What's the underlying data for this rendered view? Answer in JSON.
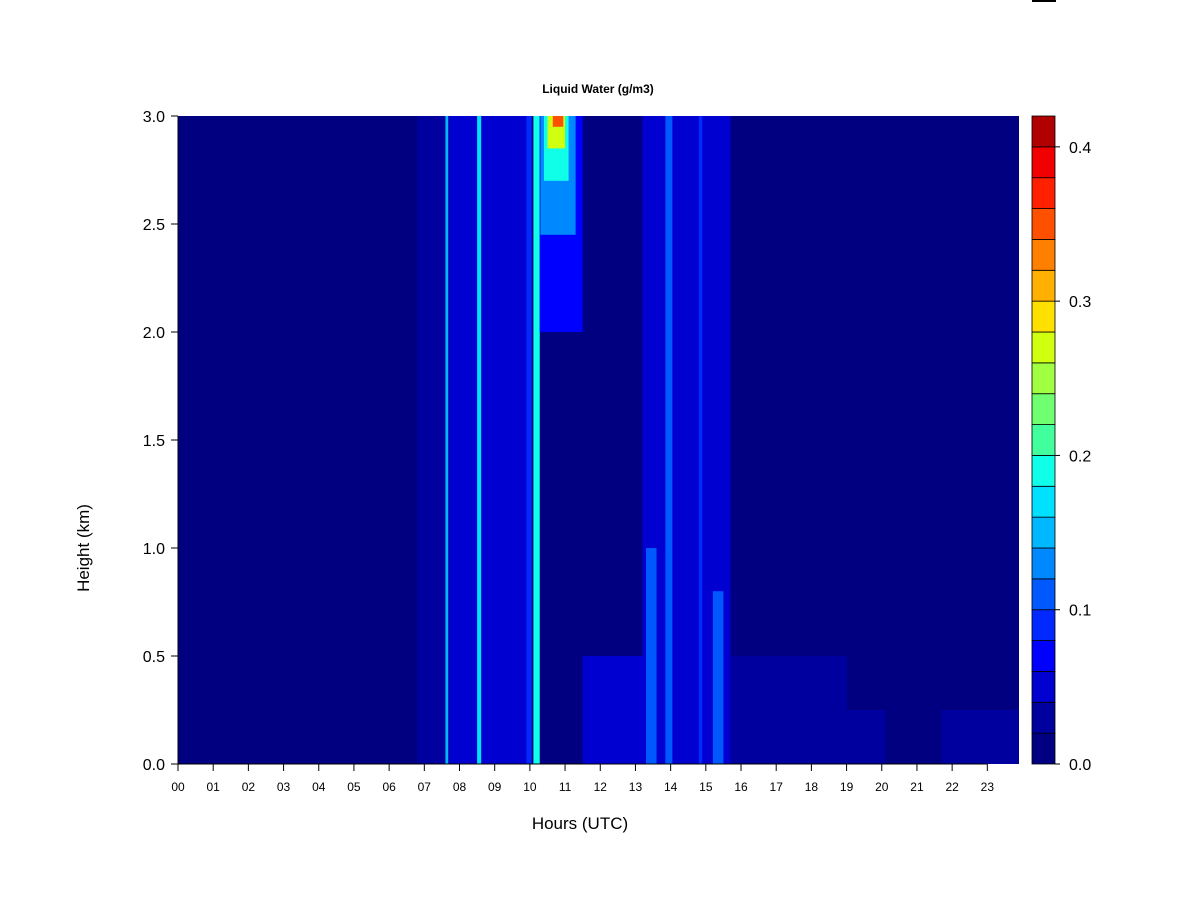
{
  "chart_data": {
    "type": "heatmap",
    "title": "Liquid Water (g/m3)",
    "xlabel": "Hours (UTC)",
    "ylabel": "Height (km)",
    "xlim": [
      0,
      23.9
    ],
    "ylim": [
      0.0,
      3.0
    ],
    "x_ticks": [
      "00",
      "01",
      "02",
      "03",
      "04",
      "05",
      "06",
      "07",
      "08",
      "09",
      "10",
      "11",
      "12",
      "13",
      "14",
      "15",
      "16",
      "17",
      "18",
      "19",
      "20",
      "21",
      "22",
      "23"
    ],
    "y_ticks": [
      "0.0",
      "0.5",
      "1.0",
      "1.5",
      "2.0",
      "2.5",
      "3.0"
    ],
    "colorbar": {
      "min": 0.0,
      "max": 0.42,
      "step": 0.02,
      "ticks": [
        "0.0",
        "0.1",
        "0.2",
        "0.3",
        "0.4"
      ],
      "colors": [
        "#000080",
        "#00009f",
        "#0000d0",
        "#0000ff",
        "#0028ff",
        "#0058ff",
        "#0088ff",
        "#00b8ff",
        "#00e0ff",
        "#10ffe8",
        "#40ff9c",
        "#70ff70",
        "#a0ff40",
        "#d0ff10",
        "#ffe000",
        "#ffb000",
        "#ff8000",
        "#ff5000",
        "#ff2000",
        "#f00000",
        "#b00000"
      ]
    },
    "background_value": 0.0,
    "features": [
      {
        "x_start": 6.8,
        "x_end": 7.6,
        "y_start": 0.0,
        "y_end": 3.0,
        "value": 0.03
      },
      {
        "x_start": 7.6,
        "x_end": 7.68,
        "y_start": 0.0,
        "y_end": 3.0,
        "value": 0.15
      },
      {
        "x_start": 7.7,
        "x_end": 8.5,
        "y_start": 0.0,
        "y_end": 3.0,
        "value": 0.05
      },
      {
        "x_start": 8.5,
        "x_end": 8.62,
        "y_start": 0.0,
        "y_end": 3.0,
        "value": 0.17
      },
      {
        "x_start": 8.62,
        "x_end": 10.0,
        "y_start": 0.0,
        "y_end": 3.0,
        "value": 0.04
      },
      {
        "x_start": 9.9,
        "x_end": 10.05,
        "y_start": 0.0,
        "y_end": 3.0,
        "value": 0.09
      },
      {
        "x_start": 10.1,
        "x_end": 10.28,
        "y_start": 0.0,
        "y_end": 3.0,
        "value": 0.19
      },
      {
        "x_start": 10.28,
        "x_end": 11.5,
        "y_start": 2.0,
        "y_end": 3.0,
        "value": 0.07
      },
      {
        "x_start": 10.3,
        "x_end": 11.3,
        "y_start": 2.45,
        "y_end": 3.0,
        "value": 0.12
      },
      {
        "x_start": 10.4,
        "x_end": 11.1,
        "y_start": 2.7,
        "y_end": 3.0,
        "value": 0.19
      },
      {
        "x_start": 10.5,
        "x_end": 11.0,
        "y_start": 2.85,
        "y_end": 3.0,
        "value": 0.26
      },
      {
        "x_start": 10.65,
        "x_end": 10.95,
        "y_start": 2.95,
        "y_end": 3.0,
        "value": 0.35
      },
      {
        "x_start": 11.5,
        "x_end": 13.2,
        "y_start": 0.0,
        "y_end": 0.5,
        "value": 0.04
      },
      {
        "x_start": 13.2,
        "x_end": 15.7,
        "y_start": 0.0,
        "y_end": 3.0,
        "value": 0.05
      },
      {
        "x_start": 13.3,
        "x_end": 13.6,
        "y_start": 0.0,
        "y_end": 1.0,
        "value": 0.1
      },
      {
        "x_start": 13.85,
        "x_end": 14.05,
        "y_start": 0.0,
        "y_end": 3.0,
        "value": 0.11
      },
      {
        "x_start": 14.8,
        "x_end": 14.9,
        "y_start": 0.0,
        "y_end": 3.0,
        "value": 0.09
      },
      {
        "x_start": 15.2,
        "x_end": 15.5,
        "y_start": 0.0,
        "y_end": 0.8,
        "value": 0.1
      },
      {
        "x_start": 15.7,
        "x_end": 19.0,
        "y_start": 0.0,
        "y_end": 0.5,
        "value": 0.03
      },
      {
        "x_start": 19.0,
        "x_end": 20.1,
        "y_start": 0.0,
        "y_end": 0.25,
        "value": 0.03
      },
      {
        "x_start": 21.7,
        "x_end": 23.9,
        "y_start": 0.0,
        "y_end": 0.25,
        "value": 0.02
      }
    ]
  }
}
